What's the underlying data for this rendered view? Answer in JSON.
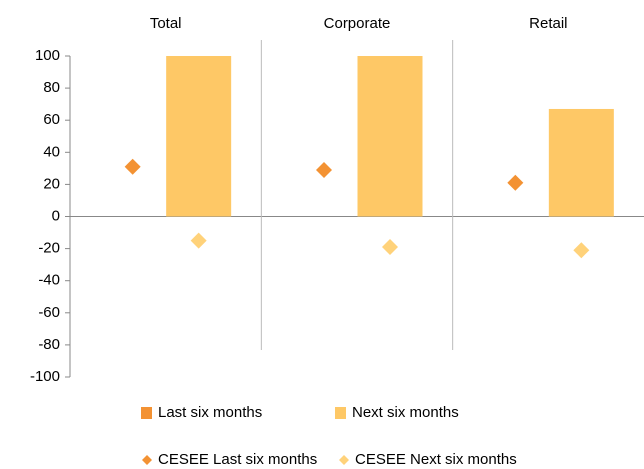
{
  "chart_data": {
    "type": "combo",
    "categories": [
      "Total",
      "Corporate",
      "Retail"
    ],
    "series": [
      {
        "name": "Last six months",
        "type": "bar",
        "color": "#f39233",
        "values": [
          0,
          0,
          0
        ]
      },
      {
        "name": "Next six months",
        "type": "bar",
        "color": "#fec866",
        "values": [
          100,
          100,
          67
        ]
      },
      {
        "name": "CESEE Last six months",
        "type": "scatter",
        "color": "#f39233",
        "values": [
          31,
          29,
          21
        ]
      },
      {
        "name": "CESEE Next six months",
        "type": "scatter",
        "color": "#ffd27a",
        "values": [
          -15,
          -19,
          -21
        ]
      }
    ],
    "ylim": [
      -100,
      100
    ],
    "yticks": [
      -100,
      -80,
      -60,
      -40,
      -20,
      0,
      20,
      40,
      60,
      80,
      100
    ]
  }
}
